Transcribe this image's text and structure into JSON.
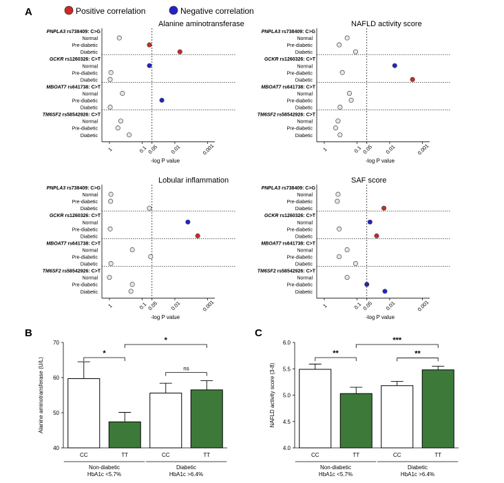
{
  "figure": {
    "panel_letters": [
      "A",
      "B",
      "C"
    ],
    "legend": [
      {
        "label": "Positive correlation",
        "color": "#cc2a22"
      },
      {
        "label": "Negative correlation",
        "color": "#2222cc"
      }
    ],
    "colors": {
      "positive": "#cc2a22",
      "negative": "#2222cc",
      "neutral": "#e6e6e6",
      "bar_cc": "#ffffff",
      "bar_tt": "#3d7a3a"
    }
  },
  "chart_data": [
    {
      "type": "scatter",
      "title": "Alanine aminotransferase",
      "xlabel": "-log P value",
      "x_scale": "log-reversed",
      "x_ticks": [
        "1",
        "0.1",
        "0.05",
        "0.01",
        "0.001"
      ],
      "x_range": [
        1.7,
        0.0006
      ],
      "threshold": 0.05,
      "groups": [
        {
          "label_italic": "PNPLA3",
          "label_rest": " rs738409: C>G",
          "points": [
            {
              "name": "Normal",
              "p": 0.5,
              "dir": "neutral"
            },
            {
              "name": "Pre-diabetic",
              "p": 0.06,
              "dir": "positive"
            },
            {
              "name": "Diabetic",
              "p": 0.007,
              "dir": "positive"
            }
          ]
        },
        {
          "label_italic": "GCKR",
          "label_rest": " rs1260326: C>T",
          "points": [
            {
              "name": "Normal",
              "p": 0.06,
              "dir": "negative"
            },
            {
              "name": "Pre-diabetic",
              "p": 0.9,
              "dir": "neutral"
            },
            {
              "name": "Diabetic",
              "p": 0.95,
              "dir": "neutral"
            }
          ]
        },
        {
          "label_italic": "MBOAT7",
          "label_rest": " rs641738: C>T",
          "points": [
            {
              "name": "Normal",
              "p": 0.4,
              "dir": "neutral"
            },
            {
              "name": "Pre-diabetic",
              "p": 0.025,
              "dir": "negative"
            },
            {
              "name": "Diabetic",
              "p": 0.95,
              "dir": "neutral"
            }
          ]
        },
        {
          "label_italic": "TM6SF2",
          "label_rest": " rs58542926: C>T",
          "points": [
            {
              "name": "Normal",
              "p": 0.45,
              "dir": "neutral"
            },
            {
              "name": "Pre-diabetic",
              "p": 0.55,
              "dir": "neutral"
            },
            {
              "name": "Diabetic",
              "p": 0.25,
              "dir": "neutral"
            }
          ]
        }
      ]
    },
    {
      "type": "scatter",
      "title": "NAFLD activity score",
      "xlabel": "-log P value",
      "x_scale": "log-reversed",
      "x_ticks": [
        "1",
        "0.1",
        "0.05",
        "0.01",
        "0.001"
      ],
      "x_range": [
        1.7,
        0.0006
      ],
      "threshold": 0.05,
      "groups": [
        {
          "label_italic": "PNPLA3",
          "label_rest": " rs738409: C>G",
          "points": [
            {
              "name": "Normal",
              "p": 0.2,
              "dir": "neutral"
            },
            {
              "name": "Pre-diabetic",
              "p": 0.35,
              "dir": "neutral"
            },
            {
              "name": "Diabetic",
              "p": 0.11,
              "dir": "neutral"
            }
          ]
        },
        {
          "label_italic": "GCKR",
          "label_rest": " rs1260326: C>T",
          "points": [
            {
              "name": "Normal",
              "p": 0.007,
              "dir": "negative"
            },
            {
              "name": "Pre-diabetic",
              "p": 0.28,
              "dir": "neutral"
            },
            {
              "name": "Diabetic",
              "p": 0.002,
              "dir": "positive"
            }
          ]
        },
        {
          "label_italic": "MBOAT7",
          "label_rest": " rs641738: C>T",
          "points": [
            {
              "name": "Normal",
              "p": 0.17,
              "dir": "neutral"
            },
            {
              "name": "Pre-diabetic",
              "p": 0.15,
              "dir": "neutral"
            },
            {
              "name": "Diabetic",
              "p": 0.33,
              "dir": "neutral"
            }
          ]
        },
        {
          "label_italic": "TM6SF2",
          "label_rest": " rs58542926: C>T",
          "points": [
            {
              "name": "Normal",
              "p": 0.38,
              "dir": "neutral"
            },
            {
              "name": "Pre-diabetic",
              "p": 0.45,
              "dir": "neutral"
            },
            {
              "name": "Diabetic",
              "p": 0.33,
              "dir": "neutral"
            }
          ]
        }
      ]
    },
    {
      "type": "scatter",
      "title": "Lobular inflammation",
      "xlabel": "-log P value",
      "x_scale": "log-reversed",
      "x_ticks": [
        "1",
        "0.1",
        "0.05",
        "0.01",
        "0.001"
      ],
      "x_range": [
        1.7,
        0.0006
      ],
      "threshold": 0.05,
      "groups": [
        {
          "label_italic": "PNPLA3",
          "label_rest": " rs738409: C>G",
          "points": [
            {
              "name": "Normal",
              "p": 0.9,
              "dir": "neutral"
            },
            {
              "name": "Pre-diabetic",
              "p": 0.92,
              "dir": "neutral"
            },
            {
              "name": "Diabetic",
              "p": 0.06,
              "dir": "neutral"
            }
          ]
        },
        {
          "label_italic": "GCKR",
          "label_rest": " rs1260326: C>T",
          "points": [
            {
              "name": "Normal",
              "p": 0.004,
              "dir": "negative"
            },
            {
              "name": "Pre-diabetic",
              "p": 0.95,
              "dir": "neutral"
            },
            {
              "name": "Diabetic",
              "p": 0.002,
              "dir": "positive"
            }
          ]
        },
        {
          "label_italic": "MBOAT7",
          "label_rest": " rs641738: C>T",
          "points": [
            {
              "name": "Normal",
              "p": 0.2,
              "dir": "neutral"
            },
            {
              "name": "Pre-diabetic",
              "p": 0.055,
              "dir": "neutral"
            },
            {
              "name": "Diabetic",
              "p": 0.9,
              "dir": "neutral"
            }
          ]
        },
        {
          "label_italic": "TM6SF2",
          "label_rest": " rs58542926: C>T",
          "points": [
            {
              "name": "Normal",
              "p": 1.0,
              "dir": "neutral"
            },
            {
              "name": "Pre-diabetic",
              "p": 0.2,
              "dir": "neutral"
            },
            {
              "name": "Diabetic",
              "p": 0.22,
              "dir": "neutral"
            }
          ]
        }
      ]
    },
    {
      "type": "scatter",
      "title": "SAF score",
      "xlabel": "-log P value",
      "x_scale": "log-reversed",
      "x_ticks": [
        "1",
        "0.1",
        "0.05",
        "0.01",
        "0.001"
      ],
      "x_range": [
        1.7,
        0.0006
      ],
      "threshold": 0.05,
      "groups": [
        {
          "label_italic": "PNPLA3",
          "label_rest": " rs738409: C>G",
          "points": [
            {
              "name": "Normal",
              "p": 0.38,
              "dir": "neutral"
            },
            {
              "name": "Pre-diabetic",
              "p": 0.4,
              "dir": "neutral"
            },
            {
              "name": "Diabetic",
              "p": 0.015,
              "dir": "positive"
            }
          ]
        },
        {
          "label_italic": "GCKR",
          "label_rest": " rs1260326: C>T",
          "points": [
            {
              "name": "Normal",
              "p": 0.04,
              "dir": "negative"
            },
            {
              "name": "Pre-diabetic",
              "p": 0.35,
              "dir": "neutral"
            },
            {
              "name": "Diabetic",
              "p": 0.025,
              "dir": "positive"
            }
          ]
        },
        {
          "label_italic": "MBOAT7",
          "label_rest": " rs641738: C>T",
          "points": [
            {
              "name": "Normal",
              "p": 0.2,
              "dir": "neutral"
            },
            {
              "name": "Pre-diabetic",
              "p": 0.35,
              "dir": "neutral"
            },
            {
              "name": "Diabetic",
              "p": 0.11,
              "dir": "neutral"
            }
          ]
        },
        {
          "label_italic": "TM6SF2",
          "label_rest": " rs58542926: C>T",
          "points": [
            {
              "name": "Normal",
              "p": 0.2,
              "dir": "neutral"
            },
            {
              "name": "Pre-diabetic",
              "p": 0.05,
              "dir": "negative"
            },
            {
              "name": "Diabetic",
              "p": 0.014,
              "dir": "negative"
            }
          ]
        }
      ]
    },
    {
      "type": "bar",
      "ylabel": "Alanine aminotransferase (U/L)",
      "ylim": [
        40,
        70
      ],
      "yticks": [
        40,
        50,
        60,
        70
      ],
      "categories": [
        "CC",
        "TT",
        "CC",
        "TT"
      ],
      "values": [
        59.7,
        47.4,
        55.6,
        56.5
      ],
      "errors": [
        4.8,
        2.7,
        2.8,
        2.6
      ],
      "fills": [
        "white",
        "green",
        "white",
        "green"
      ],
      "groups": [
        {
          "line1": "Non-diabetic",
          "line2": "HbA1c <5.7%"
        },
        {
          "line1": "Diabetic",
          "line2": "HbA1c >6.4%"
        }
      ],
      "significance": [
        {
          "from": 0,
          "to": 1,
          "label": "*"
        },
        {
          "from": 1,
          "to": 3,
          "label": "*"
        },
        {
          "from": 2,
          "to": 3,
          "label": "ns"
        }
      ]
    },
    {
      "type": "bar",
      "ylabel": "NAFLD activity score (3-8)",
      "ylim": [
        4.0,
        6.0
      ],
      "yticks": [
        "4.0",
        "4.5",
        "5.0",
        "5.5",
        "6.0"
      ],
      "categories": [
        "CC",
        "TT",
        "CC",
        "TT"
      ],
      "values": [
        5.49,
        5.03,
        5.18,
        5.48
      ],
      "errors": [
        0.1,
        0.12,
        0.08,
        0.07
      ],
      "fills": [
        "white",
        "green",
        "white",
        "green"
      ],
      "groups": [
        {
          "line1": "Non-diabetic",
          "line2": "HbA1c <5.7%"
        },
        {
          "line1": "Diabetic",
          "line2": "HbA1c >6.4%"
        }
      ],
      "significance": [
        {
          "from": 0,
          "to": 1,
          "label": "**"
        },
        {
          "from": 1,
          "to": 3,
          "label": "***"
        },
        {
          "from": 2,
          "to": 3,
          "label": "**"
        }
      ]
    }
  ]
}
